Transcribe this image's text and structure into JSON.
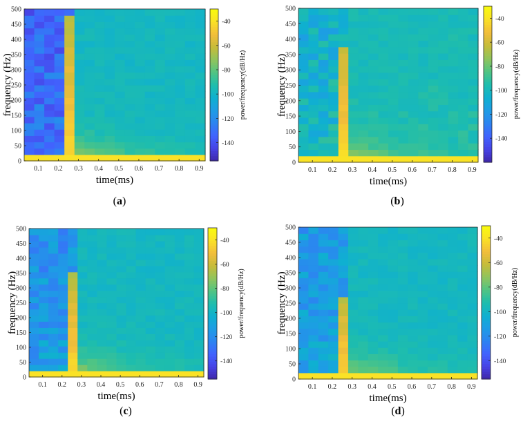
{
  "figure": {
    "colormap": [
      "#3e26a8",
      "#4743e5",
      "#4163fe",
      "#2d83f1",
      "#1e9ce5",
      "#0fb0d0",
      "#1ebdad",
      "#51c483",
      "#90c45c",
      "#c6bc3a",
      "#f2bd3b",
      "#fae127",
      "#f9fb0e"
    ]
  },
  "chart_data": [
    {
      "type": "heatmap",
      "panel_label": "(a)",
      "label_letter": "a",
      "xlabel": "time(ms)",
      "ylabel": "frequency (Hz)",
      "colorbar_label": "power/frequency(dB/Hz)",
      "x_ticks": [
        0.1,
        0.2,
        0.3,
        0.4,
        0.5,
        0.6,
        0.7,
        0.8,
        0.9
      ],
      "y_ticks": [
        0,
        50,
        100,
        150,
        200,
        250,
        300,
        350,
        400,
        450,
        500
      ],
      "colorbar_ticks": [
        -40,
        -60,
        -80,
        -100,
        -120,
        -140
      ],
      "xlim": [
        0.03,
        0.93
      ],
      "ylim": [
        0,
        500
      ],
      "clim": [
        -155,
        -30
      ],
      "pulse_top": 480,
      "bg": -128,
      "seed": 11
    },
    {
      "type": "heatmap",
      "panel_label": "(b)",
      "label_letter": "b",
      "xlabel": "time(ms)",
      "ylabel": "frequency (Hz)",
      "colorbar_label": "power/frequency(dB/Hz)",
      "x_ticks": [
        0.1,
        0.2,
        0.3,
        0.4,
        0.5,
        0.6,
        0.7,
        0.8,
        0.9
      ],
      "y_ticks": [
        0,
        50,
        100,
        150,
        200,
        250,
        300,
        350,
        400,
        450,
        500
      ],
      "colorbar_ticks": [
        -40,
        -60,
        -80,
        -100,
        -120,
        -140
      ],
      "xlim": [
        0.03,
        0.93
      ],
      "ylim": [
        0,
        500
      ],
      "clim": [
        -160,
        -30
      ],
      "pulse_top": 380,
      "bg": -100,
      "seed": 23
    },
    {
      "type": "heatmap",
      "panel_label": "(c)",
      "label_letter": "c",
      "xlabel": "time(ms)",
      "ylabel": "frequency (Hz)",
      "colorbar_label": "power/frequency(dB/Hz)",
      "x_ticks": [
        0.1,
        0.2,
        0.3,
        0.4,
        0.5,
        0.6,
        0.7,
        0.8,
        0.9
      ],
      "y_ticks": [
        0,
        50,
        100,
        150,
        200,
        250,
        300,
        350,
        400,
        450,
        500
      ],
      "colorbar_ticks": [
        -40,
        -60,
        -80,
        -100,
        -120,
        -140
      ],
      "xlim": [
        0.03,
        0.93
      ],
      "ylim": [
        0,
        500
      ],
      "clim": [
        -155,
        -30
      ],
      "pulse_top": 345,
      "bg": -112,
      "seed": 37
    },
    {
      "type": "heatmap",
      "panel_label": "(d)",
      "label_letter": "d",
      "xlabel": "time(ms)",
      "ylabel": "frequency (Hz)",
      "colorbar_label": "power/frequency(dB/Hz)",
      "x_ticks": [
        0.1,
        0.2,
        0.3,
        0.4,
        0.5,
        0.6,
        0.7,
        0.8,
        0.9
      ],
      "y_ticks": [
        0,
        50,
        100,
        150,
        200,
        250,
        300,
        350,
        400,
        450,
        500
      ],
      "colorbar_ticks": [
        -40,
        -60,
        -80,
        -100,
        -120,
        -140
      ],
      "xlim": [
        0.03,
        0.93
      ],
      "ylim": [
        0,
        500
      ],
      "clim": [
        -155,
        -30
      ],
      "pulse_top": 280,
      "bg": -108,
      "seed": 53
    }
  ]
}
